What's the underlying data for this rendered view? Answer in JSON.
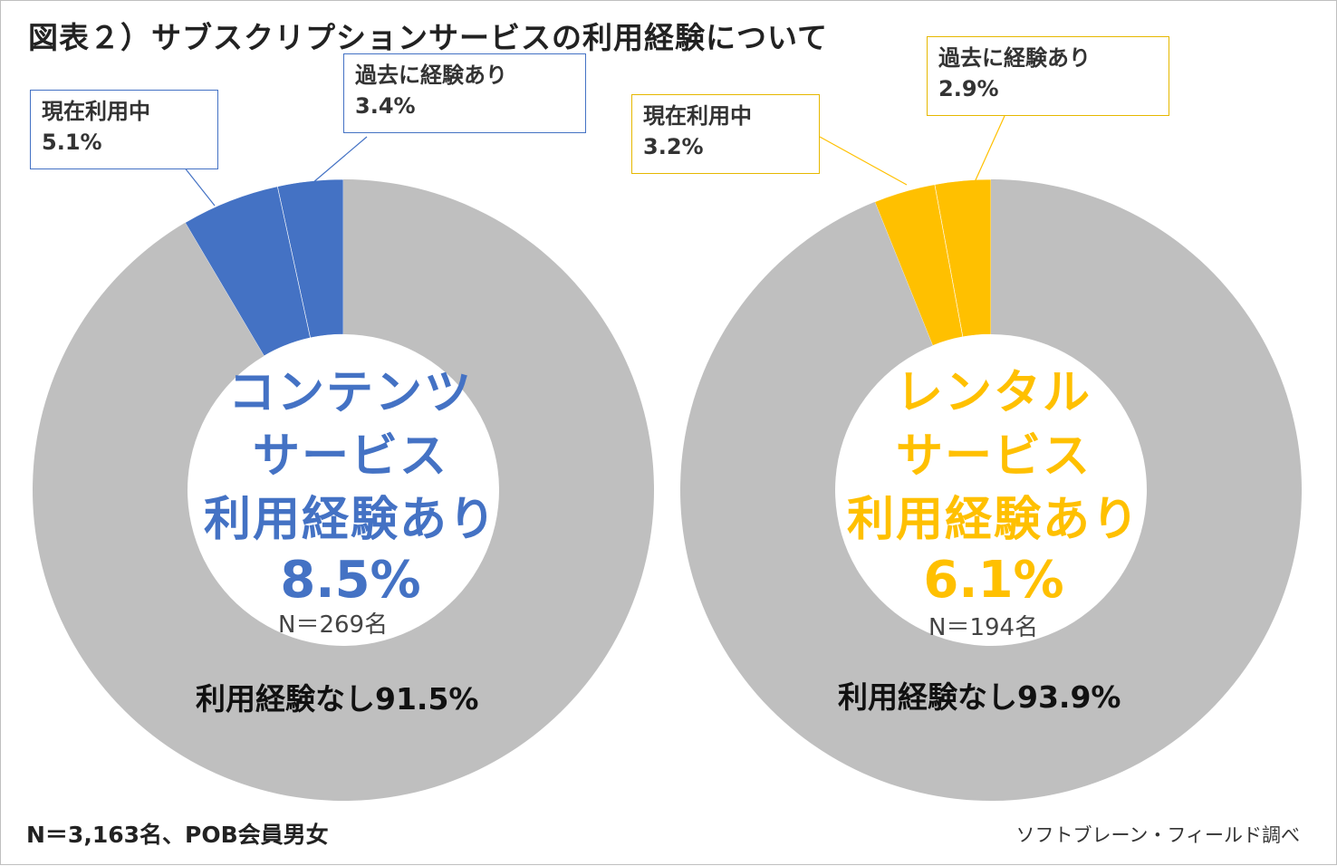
{
  "title": "図表２）サブスクリプションサービスの利用経験について",
  "footer": {
    "note": "N＝3,163名、POB会員男女",
    "source": "ソフトブレーン・フィールド調べ"
  },
  "colors": {
    "gray": "#bfbfbf",
    "blue": "#4472c4",
    "yellow": "#ffc000"
  },
  "chart_data": [
    {
      "type": "pie",
      "center_label": [
        "コンテンツ",
        "サービス",
        "利用経験あり"
      ],
      "center_value": "8.5%",
      "n_label": "N＝269名",
      "slices": [
        {
          "name": "過去に経験あり",
          "value": 3.4,
          "label": "3.4%",
          "color": "#4472c4"
        },
        {
          "name": "現在利用中",
          "value": 5.1,
          "label": "5.1%",
          "color": "#4472c4"
        },
        {
          "name": "利用経験なし",
          "value": 91.5,
          "label": "利用経験なし91.5%",
          "color": "#bfbfbf"
        }
      ]
    },
    {
      "type": "pie",
      "center_label": [
        "レンタル",
        "サービス",
        "利用経験あり"
      ],
      "center_value": "6.1%",
      "n_label": "N＝194名",
      "slices": [
        {
          "name": "過去に経験あり",
          "value": 2.9,
          "label": "2.9%",
          "color": "#ffc000"
        },
        {
          "name": "現在利用中",
          "value": 3.2,
          "label": "3.2%",
          "color": "#ffc000"
        },
        {
          "name": "利用経験なし",
          "value": 93.9,
          "label": "利用経験なし93.9%",
          "color": "#bfbfbf"
        }
      ]
    }
  ]
}
